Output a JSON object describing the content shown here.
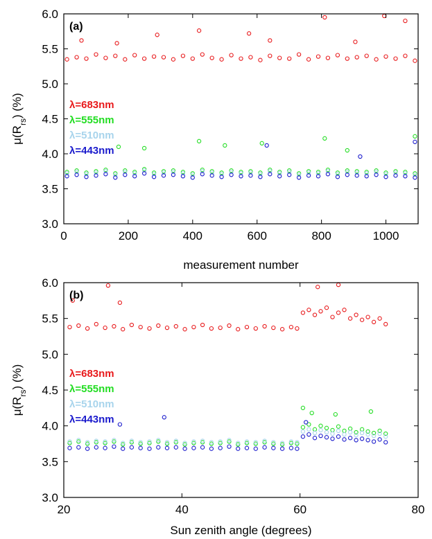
{
  "chart_data": [
    {
      "type": "scatter",
      "panel_label": "(a)",
      "xlabel": "measurement number",
      "ylabel_main": "μ(R",
      "ylabel_sub": "rs",
      "ylabel_tail": ") (%)",
      "xlim": [
        0,
        1100
      ],
      "ylim": [
        3.0,
        6.0
      ],
      "x_ticks": [
        0,
        200,
        400,
        600,
        800,
        1000
      ],
      "y_ticks": [
        3.0,
        3.5,
        4.0,
        4.5,
        5.0,
        5.5,
        6.0
      ],
      "grid": false,
      "legend_position": "middle-left",
      "series": [
        {
          "name": "λ=683nm",
          "color": "#e8191b",
          "x": [
            10,
            40,
            70,
            100,
            130,
            160,
            190,
            220,
            250,
            280,
            310,
            340,
            370,
            400,
            430,
            460,
            490,
            520,
            550,
            580,
            610,
            640,
            670,
            700,
            730,
            760,
            790,
            820,
            850,
            880,
            910,
            940,
            970,
            1000,
            1030,
            1060,
            1090,
            55,
            165,
            290,
            420,
            575,
            640,
            810,
            905,
            995,
            1060
          ],
          "y": [
            5.35,
            5.38,
            5.36,
            5.42,
            5.37,
            5.4,
            5.35,
            5.41,
            5.36,
            5.39,
            5.38,
            5.35,
            5.4,
            5.36,
            5.42,
            5.37,
            5.35,
            5.41,
            5.36,
            5.38,
            5.34,
            5.4,
            5.37,
            5.36,
            5.42,
            5.35,
            5.39,
            5.37,
            5.41,
            5.36,
            5.38,
            5.4,
            5.35,
            5.39,
            5.36,
            5.4,
            5.33,
            5.62,
            5.58,
            5.7,
            5.76,
            5.72,
            5.62,
            5.95,
            5.6,
            5.97,
            5.9
          ]
        },
        {
          "name": "λ=555nm",
          "color": "#22dd22",
          "x": [
            10,
            40,
            70,
            100,
            130,
            160,
            190,
            220,
            250,
            280,
            310,
            340,
            370,
            400,
            430,
            460,
            490,
            520,
            550,
            580,
            610,
            640,
            670,
            700,
            730,
            760,
            790,
            820,
            850,
            880,
            910,
            940,
            970,
            1000,
            1030,
            1060,
            1090,
            170,
            250,
            420,
            500,
            615,
            810,
            880,
            1090
          ],
          "y": [
            3.74,
            3.76,
            3.73,
            3.75,
            3.77,
            3.72,
            3.76,
            3.74,
            3.78,
            3.73,
            3.75,
            3.76,
            3.74,
            3.72,
            3.77,
            3.75,
            3.73,
            3.76,
            3.74,
            3.75,
            3.73,
            3.77,
            3.74,
            3.76,
            3.72,
            3.75,
            3.74,
            3.77,
            3.73,
            3.76,
            3.75,
            3.74,
            3.76,
            3.73,
            3.75,
            3.74,
            3.72,
            4.1,
            4.08,
            4.18,
            4.12,
            4.15,
            4.22,
            4.05,
            4.25
          ]
        },
        {
          "name": "λ=510nm",
          "color": "#a8d4ec",
          "x": [
            10,
            40,
            70,
            100,
            130,
            160,
            190,
            220,
            250,
            280,
            310,
            340,
            370,
            400,
            430,
            460,
            490,
            520,
            550,
            580,
            610,
            640,
            670,
            700,
            730,
            760,
            790,
            820,
            850,
            880,
            910,
            940,
            970,
            1000,
            1030,
            1060,
            1090
          ],
          "y": [
            3.72,
            3.74,
            3.71,
            3.73,
            3.75,
            3.7,
            3.74,
            3.72,
            3.76,
            3.71,
            3.73,
            3.74,
            3.72,
            3.7,
            3.75,
            3.73,
            3.71,
            3.74,
            3.72,
            3.73,
            3.71,
            3.75,
            3.72,
            3.74,
            3.7,
            3.73,
            3.72,
            3.75,
            3.71,
            3.74,
            3.73,
            3.72,
            3.74,
            3.71,
            3.73,
            3.72,
            3.7
          ]
        },
        {
          "name": "λ=443nm",
          "color": "#1a1acc",
          "x": [
            10,
            40,
            70,
            100,
            130,
            160,
            190,
            220,
            250,
            280,
            310,
            340,
            370,
            400,
            430,
            460,
            490,
            520,
            550,
            580,
            610,
            640,
            670,
            700,
            730,
            760,
            790,
            820,
            850,
            880,
            910,
            940,
            970,
            1000,
            1030,
            1060,
            1090,
            630,
            920,
            1090
          ],
          "y": [
            3.68,
            3.7,
            3.67,
            3.69,
            3.71,
            3.66,
            3.7,
            3.68,
            3.72,
            3.67,
            3.69,
            3.7,
            3.68,
            3.66,
            3.71,
            3.69,
            3.67,
            3.7,
            3.68,
            3.69,
            3.67,
            3.71,
            3.68,
            3.7,
            3.66,
            3.69,
            3.68,
            3.71,
            3.67,
            3.7,
            3.69,
            3.68,
            3.7,
            3.67,
            3.69,
            3.68,
            3.66,
            4.12,
            3.96,
            4.17
          ]
        }
      ]
    },
    {
      "type": "scatter",
      "panel_label": "(b)",
      "xlabel": "Sun zenith angle (degrees)",
      "ylabel_main": "μ(R",
      "ylabel_sub": "rs",
      "ylabel_tail": ") (%)",
      "xlim": [
        20,
        80
      ],
      "ylim": [
        3.0,
        6.0
      ],
      "x_ticks": [
        20,
        40,
        60,
        80
      ],
      "y_ticks": [
        3.0,
        3.5,
        4.0,
        4.5,
        5.0,
        5.5,
        6.0
      ],
      "grid": false,
      "legend_position": "middle-left",
      "series": [
        {
          "name": "λ=683nm",
          "color": "#e8191b",
          "x": [
            21,
            22.5,
            24,
            25.5,
            27,
            28.5,
            30,
            31.5,
            33,
            34.5,
            36,
            37.5,
            39,
            40.5,
            42,
            43.5,
            45,
            46.5,
            48,
            49.5,
            51,
            52.5,
            54,
            55.5,
            57,
            58.5,
            59.5,
            60.5,
            61.5,
            62.5,
            63.5,
            64.5,
            65.5,
            66.5,
            67.5,
            68.5,
            69.5,
            70.5,
            71.5,
            72.5,
            73.5,
            74.5,
            27.5,
            29.5,
            21.5,
            63,
            66.5
          ],
          "y": [
            5.38,
            5.4,
            5.36,
            5.42,
            5.37,
            5.39,
            5.35,
            5.41,
            5.38,
            5.36,
            5.4,
            5.37,
            5.39,
            5.35,
            5.38,
            5.41,
            5.36,
            5.37,
            5.4,
            5.35,
            5.38,
            5.36,
            5.39,
            5.37,
            5.35,
            5.38,
            5.36,
            5.58,
            5.62,
            5.55,
            5.6,
            5.65,
            5.52,
            5.58,
            5.62,
            5.5,
            5.55,
            5.48,
            5.52,
            5.45,
            5.5,
            5.42,
            5.96,
            5.72,
            5.75,
            5.94,
            5.97
          ]
        },
        {
          "name": "λ=555nm",
          "color": "#22dd22",
          "x": [
            21,
            22.5,
            24,
            25.5,
            27,
            28.5,
            30,
            31.5,
            33,
            34.5,
            36,
            37.5,
            39,
            40.5,
            42,
            43.5,
            45,
            46.5,
            48,
            49.5,
            51,
            52.5,
            54,
            55.5,
            57,
            58.5,
            59.5,
            60.5,
            61.5,
            62.5,
            63.5,
            64.5,
            65.5,
            66.5,
            67.5,
            68.5,
            69.5,
            70.5,
            71.5,
            72.5,
            73.5,
            74.5,
            60.5,
            62,
            66,
            72
          ],
          "y": [
            3.76,
            3.78,
            3.75,
            3.77,
            3.76,
            3.78,
            3.74,
            3.77,
            3.75,
            3.76,
            3.78,
            3.75,
            3.77,
            3.74,
            3.76,
            3.77,
            3.75,
            3.76,
            3.78,
            3.74,
            3.76,
            3.75,
            3.77,
            3.75,
            3.74,
            3.76,
            3.75,
            3.98,
            4.02,
            3.95,
            4.0,
            3.97,
            3.94,
            3.99,
            3.93,
            3.96,
            3.91,
            3.95,
            3.92,
            3.9,
            3.93,
            3.89,
            4.25,
            4.18,
            4.16,
            4.2
          ]
        },
        {
          "name": "λ=510nm",
          "color": "#a8d4ec",
          "x": [
            21,
            22.5,
            24,
            25.5,
            27,
            28.5,
            30,
            31.5,
            33,
            34.5,
            36,
            37.5,
            39,
            40.5,
            42,
            43.5,
            45,
            46.5,
            48,
            49.5,
            51,
            52.5,
            54,
            55.5,
            57,
            58.5,
            59.5,
            60.5,
            61.5,
            62.5,
            63.5,
            64.5,
            65.5,
            66.5,
            67.5,
            68.5,
            69.5,
            70.5,
            71.5,
            72.5,
            73.5,
            74.5
          ],
          "y": [
            3.78,
            3.8,
            3.77,
            3.79,
            3.78,
            3.8,
            3.76,
            3.79,
            3.77,
            3.78,
            3.8,
            3.77,
            3.79,
            3.76,
            3.78,
            3.79,
            3.77,
            3.78,
            3.8,
            3.76,
            3.78,
            3.77,
            3.79,
            3.77,
            3.76,
            3.78,
            3.77,
            3.92,
            3.95,
            3.9,
            3.94,
            3.91,
            3.89,
            3.93,
            3.88,
            3.91,
            3.87,
            3.9,
            3.88,
            3.86,
            3.89,
            3.85
          ]
        },
        {
          "name": "λ=443nm",
          "color": "#1a1acc",
          "x": [
            21,
            22.5,
            24,
            25.5,
            27,
            28.5,
            30,
            31.5,
            33,
            34.5,
            36,
            37.5,
            39,
            40.5,
            42,
            43.5,
            45,
            46.5,
            48,
            49.5,
            51,
            52.5,
            54,
            55.5,
            57,
            58.5,
            59.5,
            60.5,
            61.5,
            62.5,
            63.5,
            64.5,
            65.5,
            66.5,
            67.5,
            68.5,
            69.5,
            70.5,
            71.5,
            72.5,
            73.5,
            74.5,
            29.5,
            37,
            61
          ],
          "y": [
            3.69,
            3.7,
            3.68,
            3.7,
            3.69,
            3.71,
            3.68,
            3.7,
            3.69,
            3.68,
            3.7,
            3.69,
            3.7,
            3.68,
            3.69,
            3.7,
            3.68,
            3.69,
            3.71,
            3.68,
            3.69,
            3.68,
            3.7,
            3.69,
            3.68,
            3.69,
            3.68,
            3.85,
            3.88,
            3.83,
            3.86,
            3.84,
            3.82,
            3.85,
            3.81,
            3.83,
            3.8,
            3.82,
            3.8,
            3.78,
            3.81,
            3.77,
            4.02,
            4.12,
            4.05
          ]
        }
      ]
    }
  ]
}
